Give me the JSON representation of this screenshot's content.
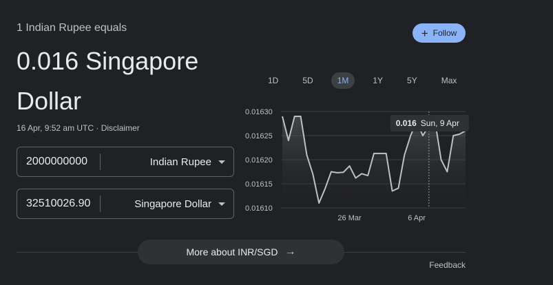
{
  "header": {
    "subtitle": "1 Indian Rupee equals",
    "value": "0.016 Singapore Dollar",
    "timestamp": "16 Apr, 9:52 am UTC · ",
    "disclaimer": "Disclaimer"
  },
  "converter": {
    "from": {
      "amount": "2000000000",
      "currency": "Indian Rupee"
    },
    "to": {
      "amount": "32510026.90",
      "currency": "Singapore Dollar"
    }
  },
  "follow": {
    "icon": "plus-icon",
    "label": "Follow"
  },
  "ranges": [
    {
      "label": "1D",
      "active": false
    },
    {
      "label": "5D",
      "active": false
    },
    {
      "label": "1M",
      "active": true
    },
    {
      "label": "1Y",
      "active": false
    },
    {
      "label": "5Y",
      "active": false
    },
    {
      "label": "Max",
      "active": false
    }
  ],
  "chart_data": {
    "type": "area",
    "y_ticks": [
      "0.01630",
      "0.01625",
      "0.01620",
      "0.01615",
      "0.01610"
    ],
    "ylim": [
      0.0161,
      0.0163
    ],
    "x_ticks": [
      {
        "label": "26 Mar",
        "index": 11
      },
      {
        "label": "6 Apr",
        "index": 22
      }
    ],
    "values": [
      0.01629,
      0.01624,
      0.01629,
      0.01629,
      0.01621,
      0.01617,
      0.01611,
      0.01614,
      0.016175,
      0.016173,
      0.016174,
      0.016187,
      0.016162,
      0.016171,
      0.016167,
      0.016213,
      0.016213,
      0.016213,
      0.016135,
      0.016141,
      0.01621,
      0.01625,
      0.01628,
      0.01625,
      0.01627,
      0.01628,
      0.0162,
      0.016175,
      0.01625,
      0.016253,
      0.01626
    ],
    "highlight": {
      "index": 24,
      "value": "0.016",
      "date": "Sun, 9 Apr"
    },
    "colors": {
      "line": "#bdc1c6",
      "fill": "#3c4043",
      "grid": "#3c4043"
    }
  },
  "more": {
    "label": "More about INR/SGD",
    "icon": "arrow-right-icon"
  },
  "feedback": "Feedback"
}
